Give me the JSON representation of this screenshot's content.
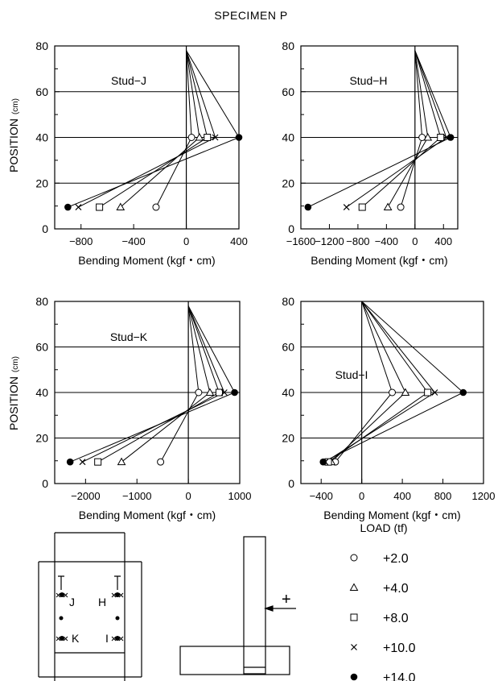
{
  "figure_title": "SPECIMEN P",
  "y_axis_label": "POSITION",
  "y_axis_unit": "(cm)",
  "x_axis_label": "Bending Moment (kgf・cm)",
  "legend": {
    "title": "LOAD (tf)",
    "entries": [
      {
        "marker": "circle",
        "label": "+2.0"
      },
      {
        "marker": "triangle",
        "label": "+4.0"
      },
      {
        "marker": "square",
        "label": "+8.0"
      },
      {
        "marker": "cross",
        "label": "+10.0"
      },
      {
        "marker": "dot",
        "label": "+14.0"
      }
    ]
  },
  "schematic": {
    "stud_labels": [
      "J",
      "H",
      "K",
      "I"
    ],
    "load_symbol": "+"
  },
  "chart_data": [
    {
      "type": "line",
      "title": "Stud−J",
      "xlabel": "Bending Moment (kgf・cm)",
      "ylabel": "POSITION (cm)",
      "xlim": [
        -1000,
        400
      ],
      "ylim": [
        0,
        80
      ],
      "xticks": [
        -800,
        -400,
        0,
        400
      ],
      "xtick_labels": [
        "−800",
        "−400",
        "0",
        "400"
      ],
      "yticks": [
        0,
        20,
        40,
        60,
        80
      ],
      "grid": true,
      "top": [
        0,
        78
      ],
      "series": [
        {
          "name": "+2.0",
          "marker": "circle",
          "points": [
            [
              -230,
              9.5
            ],
            [
              40,
              40
            ],
            [
              0,
              78
            ]
          ]
        },
        {
          "name": "+4.0",
          "marker": "triangle",
          "points": [
            [
              -500,
              9.5
            ],
            [
              100,
              40
            ],
            [
              0,
              78
            ]
          ]
        },
        {
          "name": "+8.0",
          "marker": "square",
          "points": [
            [
              -660,
              9.5
            ],
            [
              160,
              40
            ],
            [
              0,
              78
            ]
          ]
        },
        {
          "name": "+10.0",
          "marker": "cross",
          "points": [
            [
              -820,
              9.5
            ],
            [
              220,
              40
            ],
            [
              0,
              78
            ]
          ]
        },
        {
          "name": "+14.0",
          "marker": "dot",
          "points": [
            [
              -900,
              9.5
            ],
            [
              400,
              40
            ],
            [
              0,
              78
            ]
          ]
        }
      ]
    },
    {
      "type": "line",
      "title": "Stud−H",
      "xlabel": "Bending Moment (kgf・cm)",
      "ylabel": "POSITION (cm)",
      "xlim": [
        -1600,
        600
      ],
      "ylim": [
        0,
        80
      ],
      "xticks": [
        -1600,
        -1200,
        -800,
        -400,
        0,
        400
      ],
      "xtick_labels": [
        "−1600",
        "−1200",
        "−800",
        "−400",
        "0",
        "400"
      ],
      "yticks": [
        0,
        20,
        40,
        60,
        80
      ],
      "grid": true,
      "top": [
        0,
        78
      ],
      "series": [
        {
          "name": "+2.0",
          "marker": "circle",
          "points": [
            [
              -200,
              9.5
            ],
            [
              100,
              40
            ],
            [
              0,
              78
            ]
          ]
        },
        {
          "name": "+4.0",
          "marker": "triangle",
          "points": [
            [
              -380,
              9.5
            ],
            [
              180,
              40
            ],
            [
              0,
              78
            ]
          ]
        },
        {
          "name": "+8.0",
          "marker": "square",
          "points": [
            [
              -740,
              9.5
            ],
            [
              360,
              40
            ],
            [
              0,
              78
            ]
          ]
        },
        {
          "name": "+10.0",
          "marker": "cross",
          "points": [
            [
              -960,
              9.5
            ],
            [
              440,
              40
            ],
            [
              0,
              78
            ]
          ]
        },
        {
          "name": "+14.0",
          "marker": "dot",
          "points": [
            [
              -1500,
              9.5
            ],
            [
              500,
              40
            ],
            [
              0,
              78
            ]
          ]
        }
      ]
    },
    {
      "type": "line",
      "title": "Stud−K",
      "xlabel": "Bending Moment (kgf・cm)",
      "ylabel": "POSITION (cm)",
      "xlim": [
        -2600,
        1000
      ],
      "ylim": [
        0,
        80
      ],
      "xticks": [
        -2000,
        -1000,
        0,
        1000
      ],
      "xtick_labels": [
        "−2000",
        "−1000",
        "0",
        "1000"
      ],
      "yticks": [
        0,
        20,
        40,
        60,
        80
      ],
      "grid": true,
      "top": [
        0,
        78
      ],
      "series": [
        {
          "name": "+2.0",
          "marker": "circle",
          "points": [
            [
              -540,
              9.5
            ],
            [
              200,
              40
            ],
            [
              0,
              78
            ]
          ]
        },
        {
          "name": "+4.0",
          "marker": "triangle",
          "points": [
            [
              -1300,
              9.5
            ],
            [
              420,
              40
            ],
            [
              0,
              78
            ]
          ]
        },
        {
          "name": "+8.0",
          "marker": "square",
          "points": [
            [
              -1760,
              9.5
            ],
            [
              600,
              40
            ],
            [
              0,
              78
            ]
          ]
        },
        {
          "name": "+10.0",
          "marker": "cross",
          "points": [
            [
              -2060,
              9.5
            ],
            [
              700,
              40
            ],
            [
              0,
              78
            ]
          ]
        },
        {
          "name": "+14.0",
          "marker": "dot",
          "points": [
            [
              -2300,
              9.5
            ],
            [
              900,
              40
            ],
            [
              0,
              78
            ]
          ]
        }
      ]
    },
    {
      "type": "line",
      "title": "Stud−I",
      "xlabel": "Bending Moment (kgf・cm)",
      "ylabel": "POSITION (cm)",
      "xlim": [
        -600,
        1200
      ],
      "ylim": [
        0,
        80
      ],
      "xticks": [
        -400,
        0,
        400,
        800,
        1200
      ],
      "xtick_labels": [
        "−400",
        "0",
        "400",
        "800",
        "1200"
      ],
      "yticks": [
        0,
        20,
        40,
        60,
        80
      ],
      "grid": true,
      "top": [
        0,
        80
      ],
      "series": [
        {
          "name": "+2.0",
          "marker": "circle",
          "points": [
            [
              -260,
              9.5
            ],
            [
              300,
              40
            ],
            [
              0,
              80
            ]
          ]
        },
        {
          "name": "+4.0",
          "marker": "triangle",
          "points": [
            [
              -300,
              9.5
            ],
            [
              430,
              40
            ],
            [
              0,
              80
            ]
          ]
        },
        {
          "name": "+8.0",
          "marker": "square",
          "points": [
            [
              -330,
              9.5
            ],
            [
              650,
              40
            ],
            [
              0,
              80
            ]
          ]
        },
        {
          "name": "+10.0",
          "marker": "cross",
          "points": [
            [
              -360,
              9.5
            ],
            [
              720,
              40
            ],
            [
              0,
              80
            ]
          ]
        },
        {
          "name": "+14.0",
          "marker": "dot",
          "points": [
            [
              -380,
              9.5
            ],
            [
              1000,
              40
            ],
            [
              0,
              80
            ]
          ]
        }
      ]
    }
  ]
}
